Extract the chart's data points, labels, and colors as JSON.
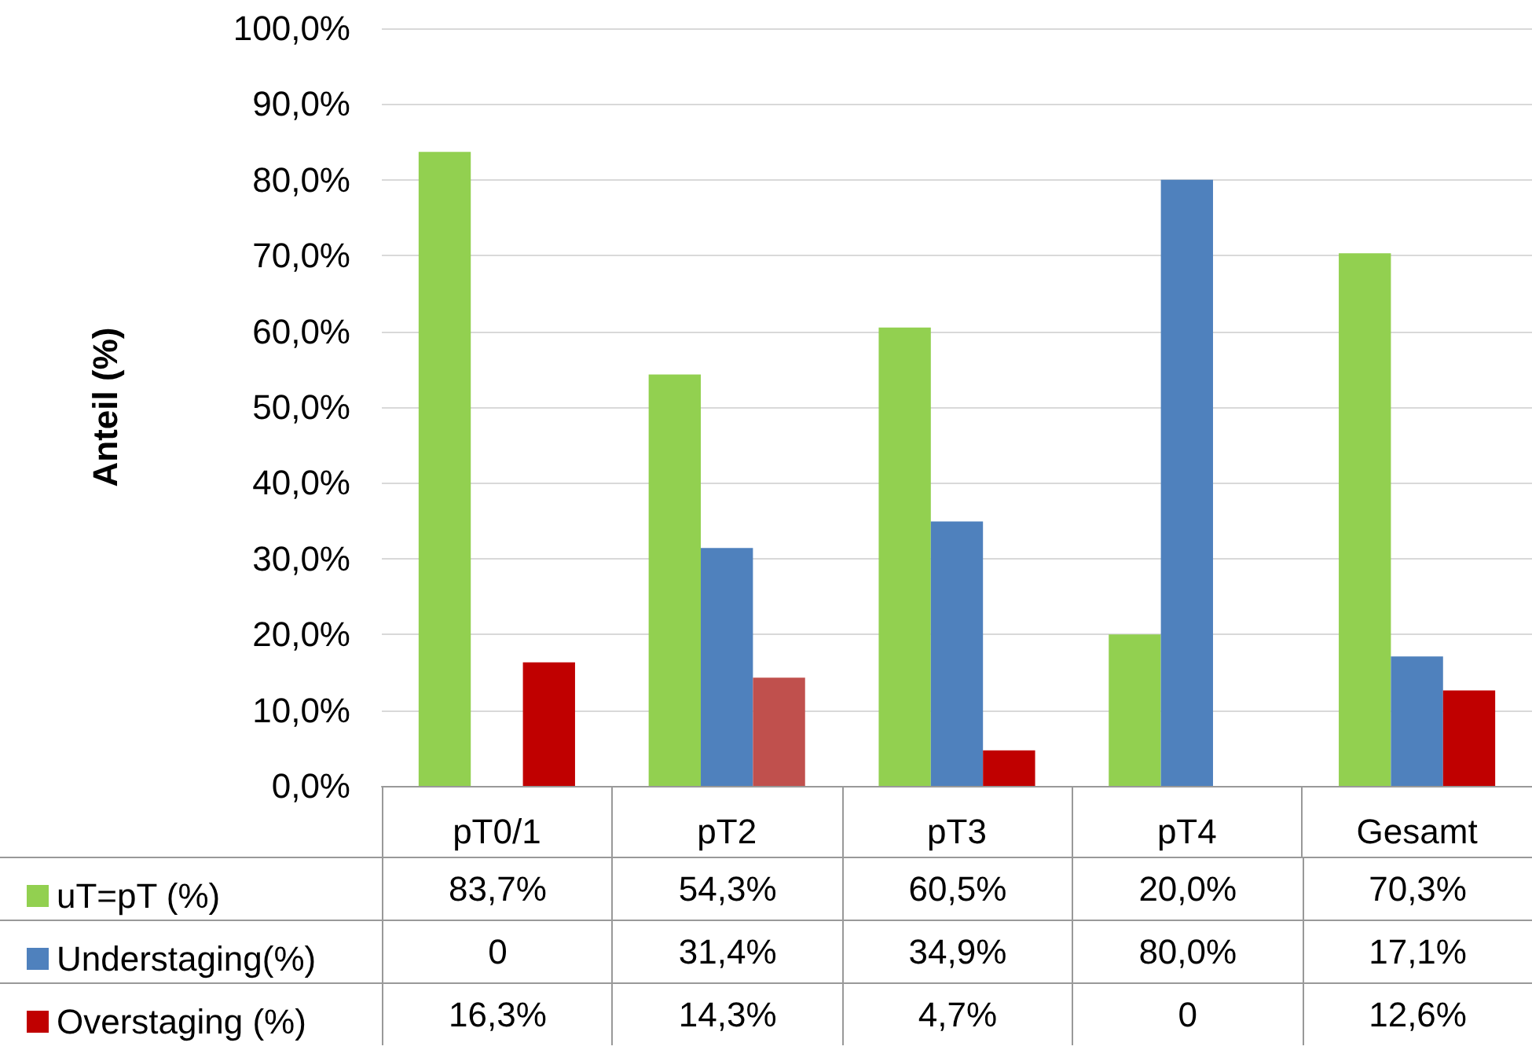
{
  "chart_data": {
    "type": "bar",
    "ylabel": "Anteil (%)",
    "categories": [
      "pT0/1",
      "pT2",
      "pT3",
      "pT4",
      "Gesamt"
    ],
    "series": [
      {
        "name": "uT=pT (%)",
        "color": "#92d050",
        "values": [
          83.7,
          54.3,
          60.5,
          20.0,
          70.3
        ],
        "value_labels": [
          "83,7%",
          "54,3%",
          "60,5%",
          "20,0%",
          "70,3%"
        ]
      },
      {
        "name": "Understaging(%)",
        "color": "#4f81bd",
        "values": [
          0,
          31.4,
          34.9,
          80.0,
          17.1
        ],
        "value_labels": [
          "0",
          "31,4%",
          "34,9%",
          "80,0%",
          "17,1%"
        ]
      },
      {
        "name": "Overstaging (%)",
        "color": "#c00000",
        "colors": [
          "#c00000",
          "#c0504d",
          "#c00000",
          "#c00000",
          "#c00000"
        ],
        "values": [
          16.3,
          14.3,
          4.7,
          0,
          12.6
        ],
        "value_labels": [
          "16,3%",
          "14,3%",
          "4,7%",
          "0",
          "12,6%"
        ]
      }
    ],
    "ylim": [
      0,
      100
    ],
    "yticks": [
      {
        "value": 0,
        "label": "0,0%"
      },
      {
        "value": 10,
        "label": "10,0%"
      },
      {
        "value": 20,
        "label": "20,0%"
      },
      {
        "value": 30,
        "label": "30,0%"
      },
      {
        "value": 40,
        "label": "40,0%"
      },
      {
        "value": 50,
        "label": "50,0%"
      },
      {
        "value": 60,
        "label": "60,0%"
      },
      {
        "value": 70,
        "label": "70,0%"
      },
      {
        "value": 80,
        "label": "80,0%"
      },
      {
        "value": 90,
        "label": "90,0%"
      },
      {
        "value": 100,
        "label": "100,0%"
      }
    ],
    "grid": "y",
    "legend": "bottom left"
  }
}
